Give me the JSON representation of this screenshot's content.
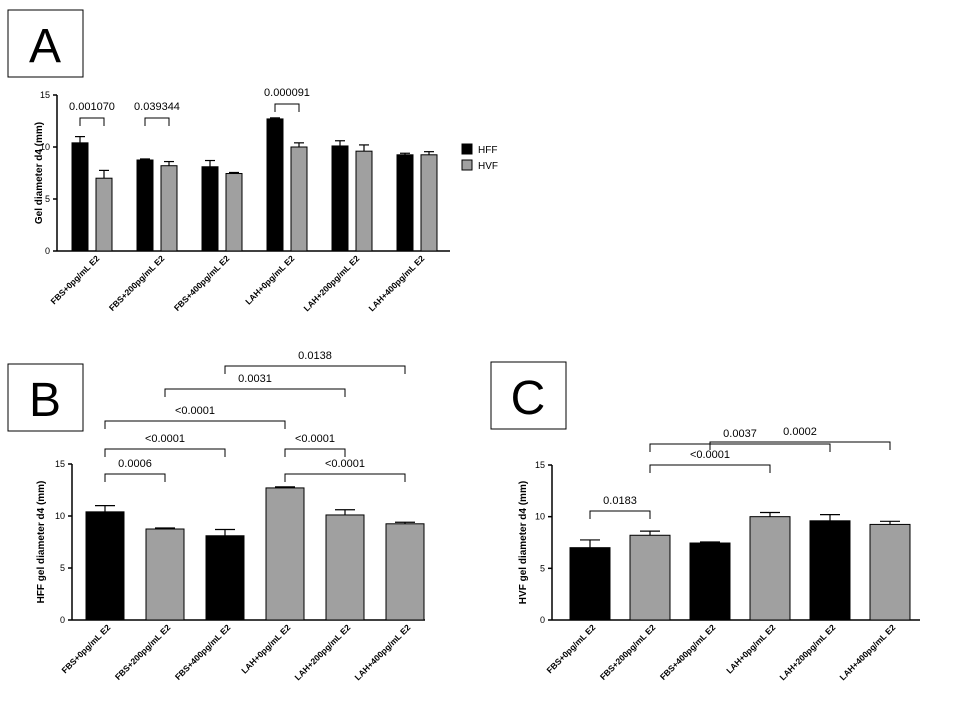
{
  "figure": {
    "colors": {
      "hff": "#000000",
      "hvf": "#a0a0a0",
      "hff_b": "#000000",
      "gray_b": "#a0a0a0"
    }
  },
  "chart_data": [
    {
      "id": "A",
      "panel_label": "A",
      "type": "bar",
      "categories": [
        "FBS+0pg/mL E2",
        "FBS+200pg/mL E2",
        "FBS+400pg/mL E2",
        "LAH+0pg/mL E2",
        "LAH+200pg/mL E2",
        "LAH+400pg/mL E2"
      ],
      "series": [
        {
          "name": "HFF",
          "values": [
            10.4,
            8.75,
            8.1,
            12.7,
            10.1,
            9.25
          ],
          "errors": [
            0.6,
            0.1,
            0.6,
            0.1,
            0.5,
            0.15
          ]
        },
        {
          "name": "HVF",
          "values": [
            7.0,
            8.2,
            7.45,
            10.0,
            9.6,
            9.25
          ],
          "errors": [
            0.75,
            0.4,
            0.1,
            0.4,
            0.6,
            0.3
          ]
        }
      ],
      "ylabel": "Gel diameter d4 (mm)",
      "ylim": [
        0,
        15
      ],
      "yticks": [
        0,
        5,
        10,
        15
      ],
      "legend_position": "right",
      "annotations": [
        {
          "text": "0.001070",
          "from": [
            0,
            0
          ],
          "to": [
            0,
            1
          ]
        },
        {
          "text": "0.039344",
          "from": [
            1,
            0
          ],
          "to": [
            1,
            1
          ]
        },
        {
          "text": "0.000091",
          "from": [
            3,
            0
          ],
          "to": [
            3,
            1
          ]
        }
      ]
    },
    {
      "id": "B",
      "panel_label": "B",
      "type": "bar",
      "categories": [
        "FBS+0pg/mL E2",
        "FBS+200pg/mL E2",
        "FBS+400pg/mL E2",
        "LAH+0pg/mL E2",
        "LAH+200pg/mL E2",
        "LAH+400pg/mL E2"
      ],
      "values": [
        10.4,
        8.75,
        8.1,
        12.7,
        10.1,
        9.25
      ],
      "errors": [
        0.6,
        0.1,
        0.6,
        0.1,
        0.5,
        0.15
      ],
      "bar_colors": [
        "#000000",
        "#a0a0a0",
        "#000000",
        "#a0a0a0",
        "#a0a0a0",
        "#a0a0a0"
      ],
      "ylabel": "HFF gel diameter d4 (mm)",
      "ylim": [
        0,
        15
      ],
      "yticks": [
        0,
        5,
        10,
        15
      ],
      "annotations": [
        {
          "text": "0.0006",
          "from": 0,
          "to": 1
        },
        {
          "text": "<0.0001",
          "from": 0,
          "to": 2
        },
        {
          "text": "<0.0001",
          "from": 0,
          "to": 3
        },
        {
          "text": "0.0031",
          "from": 1,
          "to": 4
        },
        {
          "text": "0.0138",
          "from": 2,
          "to": 5
        },
        {
          "text": "<0.0001",
          "from": 3,
          "to": 4
        },
        {
          "text": "<0.0001",
          "from": 3,
          "to": 5
        }
      ]
    },
    {
      "id": "C",
      "panel_label": "C",
      "type": "bar",
      "categories": [
        "FBS+0pg/mL E2",
        "FBS+200pg/mL E2",
        "FBS+400pg/mL E2",
        "LAH+0pg/mL E2",
        "LAH+200pg/mL E2",
        "LAH+400pg/mL E2"
      ],
      "values": [
        7.0,
        8.2,
        7.45,
        10.0,
        9.6,
        9.25
      ],
      "errors": [
        0.75,
        0.4,
        0.1,
        0.4,
        0.6,
        0.3
      ],
      "bar_colors": [
        "#000000",
        "#a0a0a0",
        "#000000",
        "#a0a0a0",
        "#000000",
        "#a0a0a0"
      ],
      "ylabel": "HVF gel diameter d4 (mm)",
      "ylim": [
        0,
        15
      ],
      "yticks": [
        0,
        5,
        10,
        15
      ],
      "annotations": [
        {
          "text": "0.0183",
          "from": 0,
          "to": 1
        },
        {
          "text": "<0.0001",
          "from": 1,
          "to": 3
        },
        {
          "text": "0.0037",
          "from": 1,
          "to": 4
        },
        {
          "text": "0.0002",
          "from": 2,
          "to": 5
        }
      ]
    }
  ]
}
